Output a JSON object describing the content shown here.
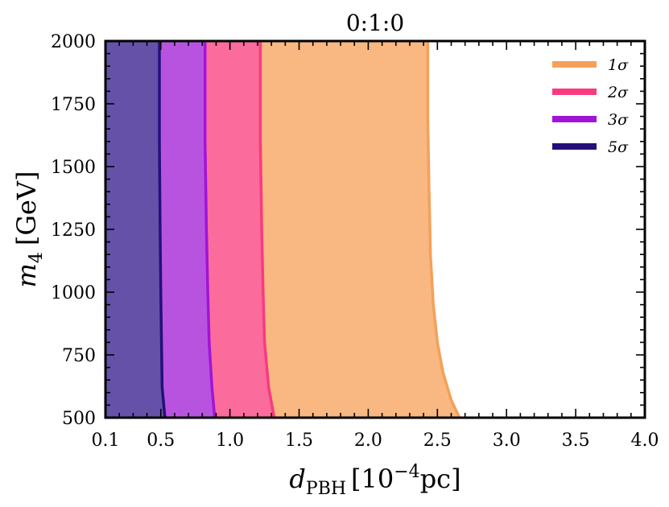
{
  "chart_data": {
    "type": "area",
    "title": "0:1:0",
    "xlabel": {
      "main": "d",
      "sub": "PBH",
      "bracket_open": "[10",
      "sup": "−4",
      "unit": "pc]"
    },
    "ylabel": {
      "main": "m",
      "sub": "4",
      "unit": "[GeV]"
    },
    "xlim": [
      0.1,
      4.0
    ],
    "ylim": [
      500,
      2000
    ],
    "x_ticks": [
      0.1,
      0.5,
      1.0,
      1.5,
      2.0,
      2.5,
      3.0,
      3.5,
      4.0
    ],
    "x_tick_labels": [
      "0.1",
      "0.5",
      "1.0",
      "1.5",
      "2.0",
      "2.5",
      "3.0",
      "3.5",
      "4.0"
    ],
    "y_ticks": [
      500,
      750,
      1000,
      1250,
      1500,
      1750,
      2000
    ],
    "y_tick_labels": [
      "500",
      "750",
      "1000",
      "1250",
      "1500",
      "1750",
      "2000"
    ],
    "grid": false,
    "legend_position": "top-right",
    "series": [
      {
        "name": "1σ",
        "color": "#f5a05a",
        "fill": "#f9b882",
        "boundary": [
          [
            2.43,
            2000
          ],
          [
            2.43,
            1700
          ],
          [
            2.44,
            1400
          ],
          [
            2.45,
            1150
          ],
          [
            2.47,
            950
          ],
          [
            2.5,
            800
          ],
          [
            2.54,
            680
          ],
          [
            2.6,
            570
          ],
          [
            2.66,
            500
          ]
        ]
      },
      {
        "name": "2σ",
        "color": "#fa3a80",
        "fill": "#fb6b9c",
        "boundary": [
          [
            1.22,
            2000
          ],
          [
            1.22,
            1600
          ],
          [
            1.23,
            1250
          ],
          [
            1.24,
            1000
          ],
          [
            1.25,
            800
          ],
          [
            1.28,
            620
          ],
          [
            1.32,
            500
          ]
        ]
      },
      {
        "name": "3σ",
        "color": "#a014d8",
        "fill": "#b853e0",
        "boundary": [
          [
            0.82,
            2000
          ],
          [
            0.82,
            1600
          ],
          [
            0.83,
            1250
          ],
          [
            0.84,
            1000
          ],
          [
            0.85,
            800
          ],
          [
            0.87,
            620
          ],
          [
            0.89,
            500
          ]
        ]
      },
      {
        "name": "5σ",
        "color": "#24107a",
        "fill": "#6552a8",
        "boundary": [
          [
            0.49,
            2000
          ],
          [
            0.49,
            1600
          ],
          [
            0.495,
            1250
          ],
          [
            0.5,
            1000
          ],
          [
            0.505,
            800
          ],
          [
            0.51,
            620
          ],
          [
            0.53,
            500
          ]
        ]
      }
    ]
  }
}
